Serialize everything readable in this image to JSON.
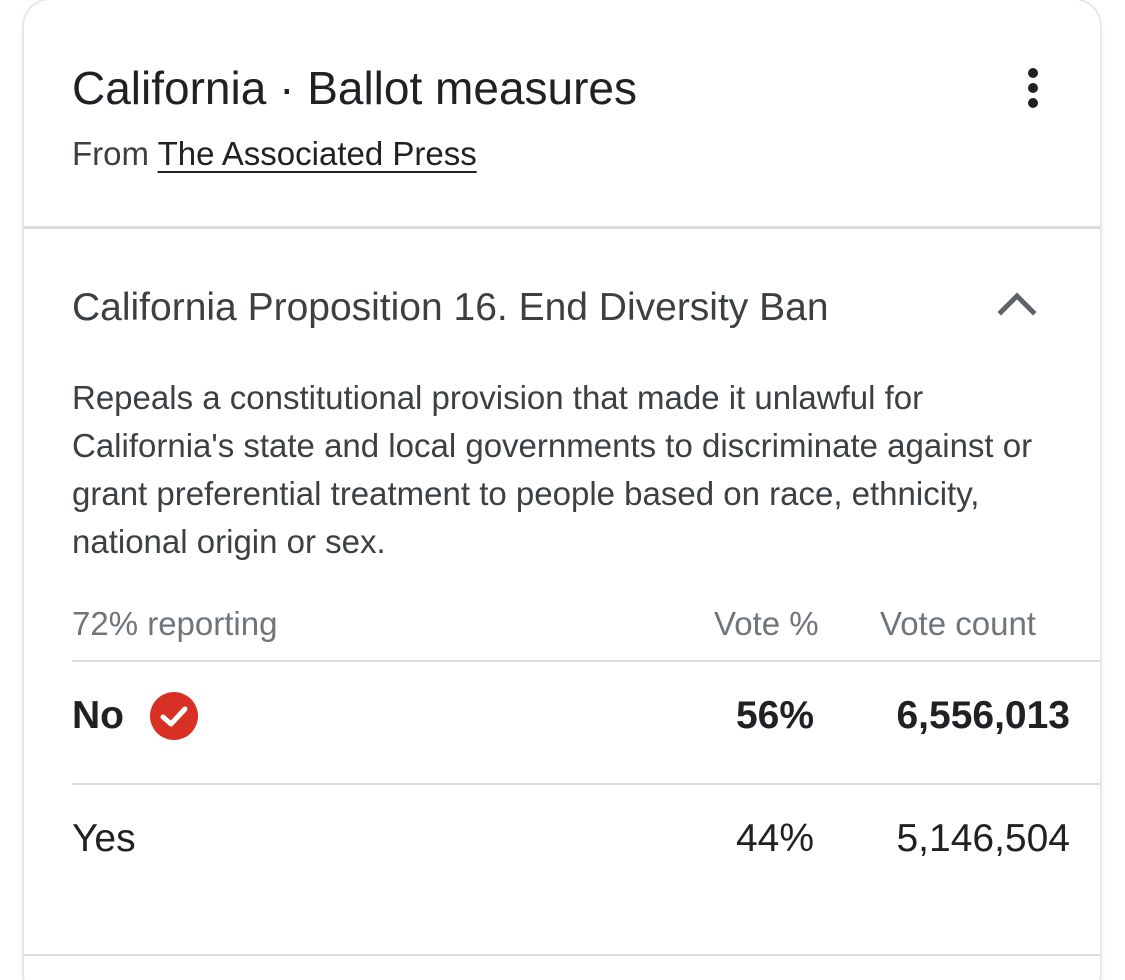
{
  "card": {
    "title": "California · Ballot measures",
    "source_prefix": "From ",
    "source_link": "The Associated Press"
  },
  "measure": {
    "title": "California Proposition 16. End Diversity Ban",
    "description": "Repeals a constitutional provision that made it unlawful for California's state and local governments to discriminate against or grant preferential treatment to people based on race, ethnicity, national origin or sex.",
    "reporting": "72% reporting",
    "col_pct": "Vote %",
    "col_count": "Vote count",
    "rows": [
      {
        "label": "No",
        "pct": "56%",
        "count": "6,556,013",
        "winner": true
      },
      {
        "label": "Yes",
        "pct": "44%",
        "count": "5,146,504",
        "winner": false
      }
    ]
  },
  "colors": {
    "winner_check": "#d93025",
    "divider": "#dadce0",
    "muted_text": "#70757a"
  },
  "icons": {
    "menu": "more-vert-icon",
    "collapse": "chevron-up-icon",
    "winner": "check-circle-icon"
  }
}
